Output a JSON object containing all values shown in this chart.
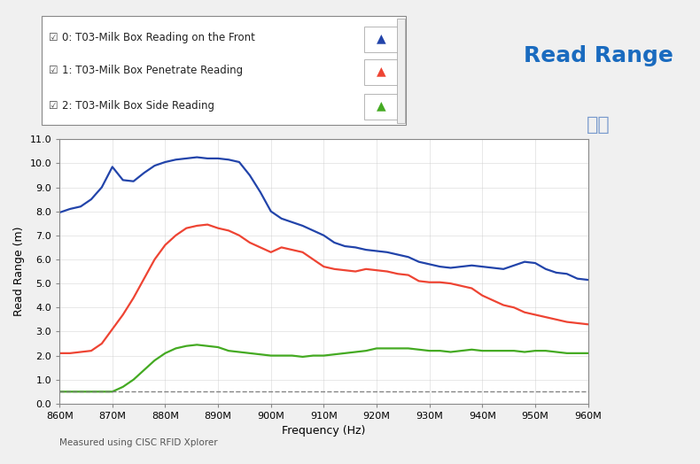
{
  "title": "Read Range",
  "subtitle": "读距",
  "xlabel": "Frequency (Hz)",
  "ylabel": "Read Range (m)",
  "footnote": "Measured using CISC RFID Xplorer",
  "xlim": [
    860,
    960
  ],
  "ylim": [
    0,
    11.0
  ],
  "yticks": [
    0.0,
    1.0,
    2.0,
    3.0,
    4.0,
    5.0,
    6.0,
    7.0,
    8.0,
    9.0,
    10.0,
    11.0
  ],
  "xtick_labels": [
    "860M",
    "870M",
    "880M",
    "890M",
    "900M",
    "910M",
    "920M",
    "930M",
    "940M",
    "950M",
    "960M"
  ],
  "xtick_values": [
    860,
    870,
    880,
    890,
    900,
    910,
    920,
    930,
    940,
    950,
    960
  ],
  "dashed_line_y": 0.5,
  "series": [
    {
      "label": "0: T03-Milk Box Reading on the Front",
      "color": "#2244aa",
      "x": [
        860,
        862,
        864,
        866,
        868,
        870,
        872,
        874,
        876,
        878,
        880,
        882,
        884,
        886,
        888,
        890,
        892,
        894,
        896,
        898,
        900,
        902,
        904,
        906,
        908,
        910,
        912,
        914,
        916,
        918,
        920,
        922,
        924,
        926,
        928,
        930,
        932,
        934,
        936,
        938,
        940,
        942,
        944,
        946,
        948,
        950,
        952,
        954,
        956,
        958,
        960
      ],
      "y": [
        7.95,
        8.1,
        8.2,
        8.5,
        9.0,
        9.85,
        9.3,
        9.25,
        9.6,
        9.9,
        10.05,
        10.15,
        10.2,
        10.25,
        10.2,
        10.2,
        10.15,
        10.05,
        9.5,
        8.8,
        8.0,
        7.7,
        7.55,
        7.4,
        7.2,
        7.0,
        6.7,
        6.55,
        6.5,
        6.4,
        6.35,
        6.3,
        6.2,
        6.1,
        5.9,
        5.8,
        5.7,
        5.65,
        5.7,
        5.75,
        5.7,
        5.65,
        5.6,
        5.75,
        5.9,
        5.85,
        5.6,
        5.45,
        5.4,
        5.2,
        5.15
      ]
    },
    {
      "label": "1: T03-Milk Box Penetrate Reading",
      "color": "#ee4433",
      "x": [
        860,
        862,
        864,
        866,
        868,
        870,
        872,
        874,
        876,
        878,
        880,
        882,
        884,
        886,
        888,
        890,
        892,
        894,
        896,
        898,
        900,
        902,
        904,
        906,
        908,
        910,
        912,
        914,
        916,
        918,
        920,
        922,
        924,
        926,
        928,
        930,
        932,
        934,
        936,
        938,
        940,
        942,
        944,
        946,
        948,
        950,
        952,
        954,
        956,
        958,
        960
      ],
      "y": [
        2.1,
        2.1,
        2.15,
        2.2,
        2.5,
        3.1,
        3.7,
        4.4,
        5.2,
        6.0,
        6.6,
        7.0,
        7.3,
        7.4,
        7.45,
        7.3,
        7.2,
        7.0,
        6.7,
        6.5,
        6.3,
        6.5,
        6.4,
        6.3,
        6.0,
        5.7,
        5.6,
        5.55,
        5.5,
        5.6,
        5.55,
        5.5,
        5.4,
        5.35,
        5.1,
        5.05,
        5.05,
        5.0,
        4.9,
        4.8,
        4.5,
        4.3,
        4.1,
        4.0,
        3.8,
        3.7,
        3.6,
        3.5,
        3.4,
        3.35,
        3.3
      ]
    },
    {
      "label": "2: T03-Milk Box Side Reading",
      "color": "#44aa22",
      "x": [
        860,
        862,
        864,
        866,
        868,
        870,
        872,
        874,
        876,
        878,
        880,
        882,
        884,
        886,
        888,
        890,
        892,
        894,
        896,
        898,
        900,
        902,
        904,
        906,
        908,
        910,
        912,
        914,
        916,
        918,
        920,
        922,
        924,
        926,
        928,
        930,
        932,
        934,
        936,
        938,
        940,
        942,
        944,
        946,
        948,
        950,
        952,
        954,
        956,
        958,
        960
      ],
      "y": [
        0.5,
        0.5,
        0.5,
        0.5,
        0.5,
        0.5,
        0.7,
        1.0,
        1.4,
        1.8,
        2.1,
        2.3,
        2.4,
        2.45,
        2.4,
        2.35,
        2.2,
        2.15,
        2.1,
        2.05,
        2.0,
        2.0,
        2.0,
        1.95,
        2.0,
        2.0,
        2.05,
        2.1,
        2.15,
        2.2,
        2.3,
        2.3,
        2.3,
        2.3,
        2.25,
        2.2,
        2.2,
        2.15,
        2.2,
        2.25,
        2.2,
        2.2,
        2.2,
        2.2,
        2.15,
        2.2,
        2.2,
        2.15,
        2.1,
        2.1,
        2.1
      ]
    }
  ],
  "background_color": "#f0f0f0",
  "plot_bg_color": "#ffffff",
  "title_color": "#1a6bbf",
  "subtitle_color": "#7799cc",
  "legend_box_color": "#ffffff"
}
